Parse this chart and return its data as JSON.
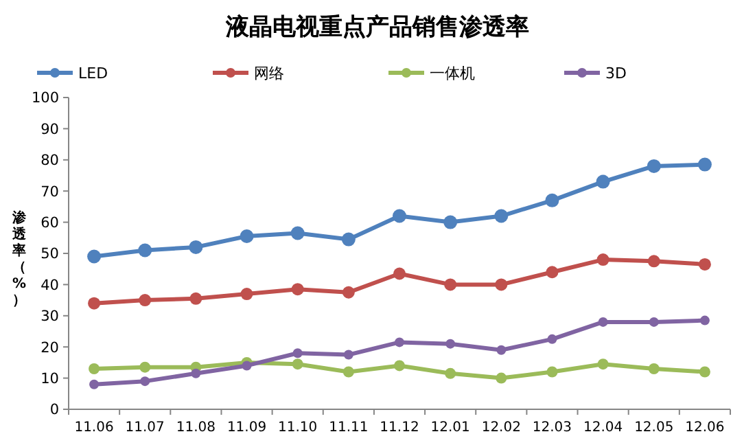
{
  "chart_data": {
    "type": "line",
    "title": "液晶电视重点产品销售渗透率",
    "ylabel": "渗透率（%）",
    "categories": [
      "11.06",
      "11.07",
      "11.08",
      "11.09",
      "11.10",
      "11.11",
      "11.12",
      "12.01",
      "12.02",
      "12.03",
      "12.04",
      "12.05",
      "12.06"
    ],
    "series": [
      {
        "name": "LED",
        "color": "#4f81bd",
        "values": [
          49,
          51,
          52,
          55.5,
          56.5,
          54.5,
          62,
          60,
          62,
          67,
          73,
          78,
          78.5
        ]
      },
      {
        "name": "网络",
        "color": "#c0504d",
        "values": [
          34,
          35,
          35.5,
          37,
          38.5,
          37.5,
          43.5,
          40,
          40,
          44,
          48,
          47.5,
          46.5
        ]
      },
      {
        "name": "一体机",
        "color": "#9bbb59",
        "values": [
          13,
          13.5,
          13.5,
          15,
          14.5,
          12,
          14,
          11.5,
          10,
          12,
          14.5,
          13,
          12
        ]
      },
      {
        "name": "3D",
        "color": "#8064a2",
        "values": [
          8,
          9,
          11.5,
          14,
          18,
          17.5,
          21.5,
          21,
          19,
          22.5,
          28,
          28,
          28.5
        ]
      }
    ],
    "ylim": [
      0,
      100
    ],
    "yticks": [
      0,
      10,
      20,
      30,
      40,
      50,
      60,
      70,
      80,
      90,
      100
    ],
    "grid": false,
    "legend": "top",
    "marker": "circle",
    "line_style": "solid"
  }
}
